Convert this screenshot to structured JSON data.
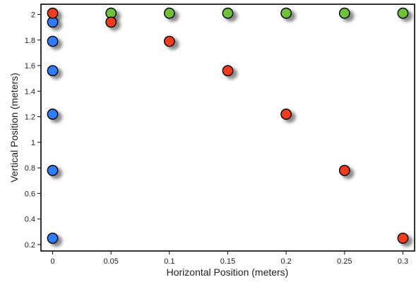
{
  "chart_data": {
    "type": "scatter",
    "xlabel": "Horizontal Position (meters)",
    "ylabel": "Vertical Position (meters)",
    "xlim": [
      -0.01,
      0.31
    ],
    "ylim": [
      0.15,
      2.08
    ],
    "xticks": [
      "0",
      "0.05",
      "0.1",
      "0.15",
      "0.2",
      "0.25",
      "0.3"
    ],
    "yticks": [
      "0.2",
      "0.4",
      "0.6",
      "0.8",
      "1",
      "1.2",
      "1.4",
      "1.6",
      "1.8",
      "2"
    ],
    "grid": false,
    "marker_shadow": true,
    "series": [
      {
        "color": "#2f7df6",
        "x": [
          0,
          0,
          0,
          0,
          0,
          0
        ],
        "y": [
          1.94,
          1.79,
          1.56,
          1.22,
          0.78,
          0.25
        ]
      },
      {
        "color": "#6fc13c",
        "x": [
          0.05,
          0.1,
          0.15,
          0.2,
          0.25,
          0.3
        ],
        "y": [
          2.01,
          2.01,
          2.01,
          2.01,
          2.01,
          2.01
        ]
      },
      {
        "color": "#f03c1e",
        "x": [
          0,
          0.05,
          0.1,
          0.15,
          0.2,
          0.25,
          0.3
        ],
        "y": [
          2.01,
          1.94,
          1.79,
          1.56,
          1.22,
          0.78,
          0.25
        ]
      }
    ]
  }
}
